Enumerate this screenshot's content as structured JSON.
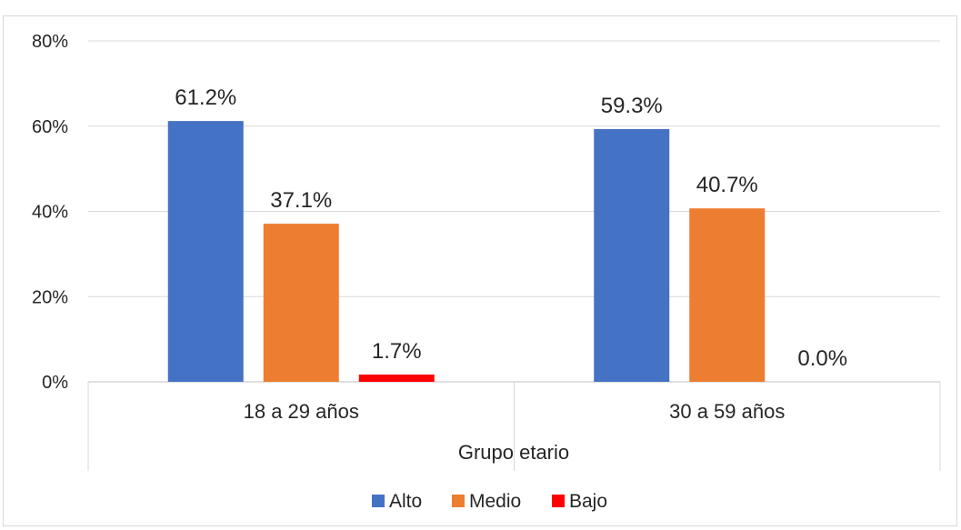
{
  "chart_data": {
    "type": "bar",
    "categories": [
      "18 a 29 años",
      "30 a 59 años"
    ],
    "series": [
      {
        "name": "Alto",
        "values": [
          61.2,
          59.3
        ],
        "labels": [
          "61.2%",
          "59.3%"
        ],
        "color": "#4472c4"
      },
      {
        "name": "Medio",
        "values": [
          37.1,
          40.7
        ],
        "labels": [
          "37.1%",
          "40.7%"
        ],
        "color": "#ed7d31"
      },
      {
        "name": "Bajo",
        "values": [
          1.7,
          0.0
        ],
        "labels": [
          "1.7%",
          "0.0%"
        ],
        "color": "#ff0000"
      }
    ],
    "title": "",
    "xlabel": "Grupo etario",
    "ylabel": "",
    "ylim": [
      0,
      80
    ],
    "yticks": [
      "0%",
      "20%",
      "40%",
      "60%",
      "80%"
    ],
    "ytick_values": [
      0,
      20,
      40,
      60,
      80
    ],
    "grid": true,
    "legend_position": "bottom"
  }
}
